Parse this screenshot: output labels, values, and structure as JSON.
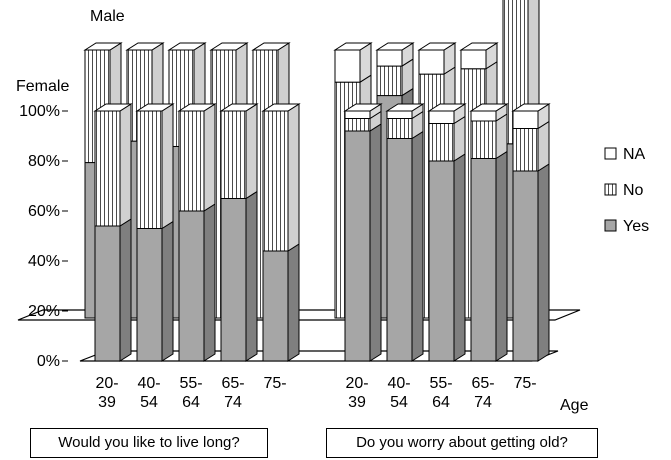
{
  "chart_data": {
    "type": "bar",
    "stacked": true,
    "three_d": true,
    "layers": [
      "Male",
      "Female"
    ],
    "y_ticks": [
      "0%",
      "20%",
      "40%",
      "60%",
      "80%",
      "100%"
    ],
    "ylim": [
      0,
      100
    ],
    "xlabel": "Age",
    "legend": {
      "placement": "right",
      "entries": [
        "NA",
        "No",
        "Yes"
      ]
    },
    "groups": [
      {
        "title": "Would you like to live long?",
        "categories": [
          [
            "20-",
            "39"
          ],
          [
            "40-",
            "54"
          ],
          [
            "55-",
            "64"
          ],
          [
            "65-",
            "74"
          ],
          [
            "75-",
            "—"
          ]
        ],
        "male": {
          "Yes": [
            58,
            66,
            64,
            0,
            0
          ],
          "No": [
            42,
            34,
            36,
            100,
            100
          ],
          "NA": [
            0,
            0,
            0,
            0,
            0
          ]
        },
        "female": {
          "Yes": [
            54,
            53,
            60,
            65,
            44
          ],
          "No": [
            46,
            47,
            40,
            35,
            56
          ],
          "NA": [
            0,
            0,
            0,
            0,
            0
          ]
        }
      },
      {
        "title": "Do you worry about getting old?",
        "categories": [
          [
            "20-",
            "39"
          ],
          [
            "40-",
            "54"
          ],
          [
            "55-",
            "64"
          ],
          [
            "65-",
            "74"
          ],
          [
            "75-",
            "—"
          ]
        ],
        "male": {
          "Yes": [
            0,
            83,
            0,
            0,
            65
          ],
          "No": [
            88,
            11,
            91,
            93,
            88
          ],
          "NA": [
            12,
            6,
            9,
            7,
            12
          ]
        },
        "female": {
          "Yes": [
            92,
            89,
            80,
            81,
            76
          ],
          "No": [
            5,
            8,
            15,
            15,
            17
          ],
          "NA": [
            3,
            3,
            5,
            4,
            7
          ]
        }
      }
    ]
  },
  "colors": {
    "Yes": "#a6a6a6",
    "No": "#ffffff",
    "NA": "#ffffff",
    "outline": "#000000"
  }
}
